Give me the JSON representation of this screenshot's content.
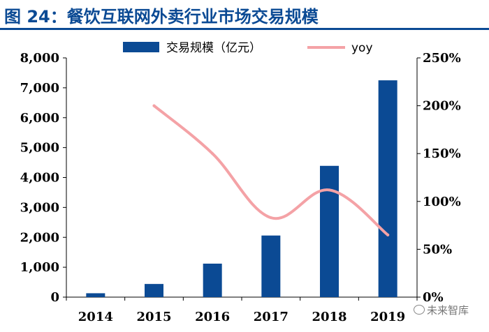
{
  "header": {
    "title": "图 24：餐饮互联网外卖行业市场交易规模"
  },
  "watermark": {
    "text": "未来智库"
  },
  "chart_data": {
    "type": "bar",
    "categories": [
      "2014",
      "2015",
      "2016",
      "2017",
      "2018",
      "2019"
    ],
    "series": [
      {
        "name": "交易规模（亿元）",
        "type": "bar",
        "axis": "left",
        "color": "#0b4a94",
        "values": [
          130,
          440,
          1120,
          2060,
          4390,
          7250
        ]
      },
      {
        "name": "yoy",
        "type": "line",
        "axis": "right",
        "color": "#f4a2a6",
        "values": [
          null,
          2.0,
          1.5,
          0.83,
          1.12,
          0.65
        ]
      }
    ],
    "left_axis": {
      "ylim": [
        0,
        8000
      ],
      "ticks": [
        0,
        1000,
        2000,
        3000,
        4000,
        5000,
        6000,
        7000,
        8000
      ],
      "tick_labels": [
        "0",
        "1,000",
        "2,000",
        "3,000",
        "4,000",
        "5,000",
        "6,000",
        "7,000",
        "8,000"
      ]
    },
    "right_axis": {
      "ylim": [
        0,
        2.5
      ],
      "ticks": [
        0,
        0.5,
        1.0,
        1.5,
        2.0,
        2.5
      ],
      "tick_labels": [
        "0%",
        "50%",
        "100%",
        "150%",
        "200%",
        "250%"
      ]
    },
    "legend": {
      "placement": "top",
      "entries": [
        "交易规模（亿元）",
        "yoy"
      ]
    },
    "grid": false
  }
}
